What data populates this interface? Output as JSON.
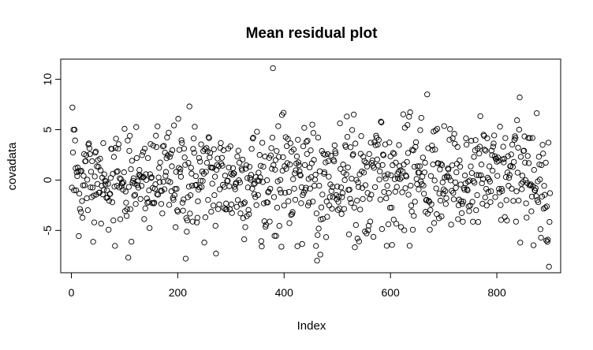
{
  "chart_data": {
    "type": "scatter",
    "title": "Mean residual plot",
    "xlabel": "Index",
    "ylabel": "covadata",
    "xlim": [
      -20,
      920
    ],
    "ylim": [
      -9.2,
      12.0
    ],
    "xticks": [
      0,
      200,
      400,
      600,
      800
    ],
    "yticks": [
      -5,
      0,
      5,
      10
    ],
    "xtick_labels": [
      "0",
      "200",
      "400",
      "600",
      "800"
    ],
    "ytick_labels": [
      "-5",
      "0",
      "5",
      "10"
    ],
    "grid": false,
    "marker": "open-circle",
    "color": "#000000",
    "n_points": 900,
    "highlighted_points": [
      {
        "x": 2,
        "y": 7.2
      },
      {
        "x": 4,
        "y": 5.0
      },
      {
        "x": 6,
        "y": 5.0
      },
      {
        "x": 107,
        "y": -7.7
      },
      {
        "x": 215,
        "y": -7.8
      },
      {
        "x": 222,
        "y": 7.3
      },
      {
        "x": 272,
        "y": -7.3
      },
      {
        "x": 379,
        "y": 11.1
      },
      {
        "x": 462,
        "y": -8.0
      },
      {
        "x": 468,
        "y": -7.4
      },
      {
        "x": 669,
        "y": 8.5
      },
      {
        "x": 843,
        "y": 8.2
      },
      {
        "x": 898,
        "y": -8.6
      }
    ]
  }
}
